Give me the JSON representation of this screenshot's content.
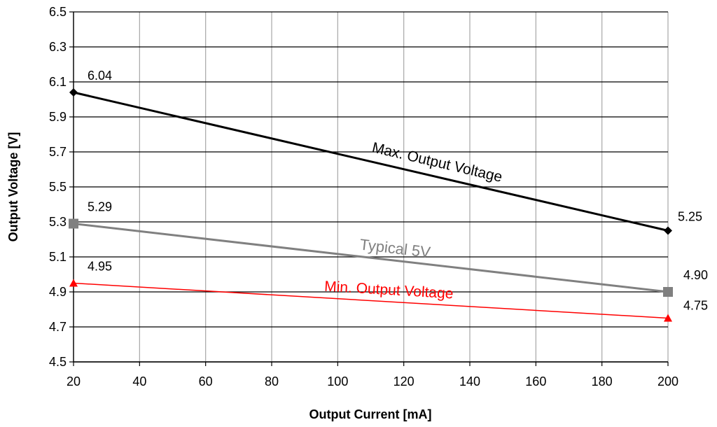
{
  "chart_data": {
    "type": "line",
    "xlabel": "Output Current [mA]",
    "ylabel": "Output Voltage [V]",
    "xlim": [
      20,
      200
    ],
    "ylim": [
      4.5,
      6.5
    ],
    "x_ticks": [
      20,
      40,
      60,
      80,
      100,
      120,
      140,
      160,
      180,
      200
    ],
    "y_ticks": [
      "4.5",
      "4.7",
      "4.9",
      "5.1",
      "5.3",
      "5.5",
      "5.7",
      "5.9",
      "6.1",
      "6.3",
      "6.5"
    ],
    "grid": true,
    "legend": "none",
    "series": [
      {
        "name": "Max. Output Voltage",
        "x": [
          20,
          200
        ],
        "y": [
          6.04,
          5.25
        ],
        "labels": [
          "6.04",
          "5.25"
        ],
        "color": "#000000",
        "marker": "diamond"
      },
      {
        "name": "Typical 5V",
        "x": [
          20,
          200
        ],
        "y": [
          5.29,
          4.9
        ],
        "labels": [
          "5.29",
          "4.90"
        ],
        "color": "#808080",
        "marker": "square"
      },
      {
        "name": "Min. Output Voltage",
        "x": [
          20,
          200
        ],
        "y": [
          4.95,
          4.75
        ],
        "labels": [
          "4.95",
          "4.75"
        ],
        "color": "#ff0000",
        "marker": "triangle"
      }
    ]
  }
}
